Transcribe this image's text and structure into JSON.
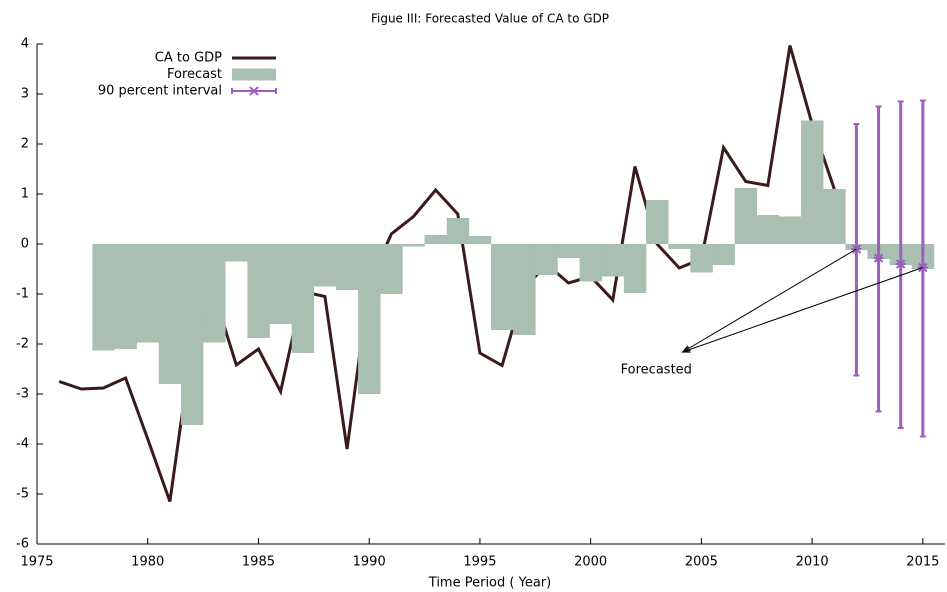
{
  "chart_data": {
    "type": "line",
    "title": "Figue III: Forecasted Value of CA to GDP",
    "x_label": "Time Period ( Year)",
    "annotation": "Forecasted",
    "xlim": [
      1975,
      2016
    ],
    "ylim": [
      -6,
      4
    ],
    "xticks": [
      1975,
      1980,
      1985,
      1990,
      1995,
      2000,
      2005,
      2010,
      2015
    ],
    "yticks": [
      -6,
      -5,
      -4,
      -3,
      -2,
      -1,
      0,
      1,
      2,
      3,
      4
    ],
    "legend": "top-left",
    "series": [
      {
        "name": "CA to GDP",
        "type": "line",
        "color": "#3b1a1c",
        "x": [
          1976,
          1977,
          1978,
          1979,
          1980,
          1981,
          1982,
          1983,
          1984,
          1985,
          1986,
          1987,
          1988,
          1989,
          1990,
          1991,
          1992,
          1993,
          1994,
          1995,
          1996,
          1997,
          1998,
          1999,
          2000,
          2001,
          2002,
          2003,
          2004,
          2005,
          2006,
          2007,
          2008,
          2009,
          2010,
          2011
        ],
        "values": [
          -2.75,
          -2.9,
          -2.88,
          -2.68,
          -3.9,
          -5.15,
          -2.0,
          -1.0,
          -2.42,
          -2.1,
          -2.95,
          -0.95,
          -1.05,
          -4.1,
          -0.8,
          0.2,
          0.55,
          1.08,
          0.6,
          -2.18,
          -2.43,
          -0.9,
          -0.4,
          -0.78,
          -0.65,
          -1.12,
          1.55,
          0.0,
          -0.48,
          -0.3,
          1.93,
          1.25,
          1.17,
          3.97,
          2.4,
          1.1
        ]
      },
      {
        "name": "Forecast",
        "type": "bar",
        "color": "#a8bfb2",
        "x": [
          1978,
          1979,
          1980,
          1981,
          1982,
          1983,
          1984,
          1985,
          1986,
          1987,
          1988,
          1989,
          1990,
          1991,
          1992,
          1993,
          1994,
          1995,
          1996,
          1997,
          1998,
          1999,
          2000,
          2001,
          2002,
          2003,
          2004,
          2005,
          2006,
          2007,
          2008,
          2009,
          2010,
          2011,
          2012,
          2013,
          2014,
          2015
        ],
        "values": [
          -2.13,
          -2.1,
          -1.97,
          -2.8,
          -3.62,
          -1.97,
          -0.35,
          -1.88,
          -1.6,
          -2.18,
          -0.85,
          -0.92,
          -3.0,
          -1.0,
          -0.05,
          0.18,
          0.52,
          0.16,
          -1.72,
          -1.82,
          -0.62,
          -0.28,
          -0.75,
          -0.65,
          -0.98,
          0.88,
          -0.1,
          -0.57,
          -0.42,
          1.12,
          0.58,
          0.55,
          2.47,
          1.1,
          -0.12,
          -0.3,
          -0.42,
          -0.5
        ]
      },
      {
        "name": "90 percent interval",
        "type": "errorbar",
        "color": "#9b5fc0",
        "x": [
          2012,
          2013,
          2014,
          2015
        ],
        "values": [
          -0.1,
          -0.28,
          -0.4,
          -0.47
        ],
        "lower": [
          -2.63,
          -3.35,
          -3.68,
          -3.85
        ],
        "upper": [
          2.4,
          2.75,
          2.85,
          2.87
        ]
      }
    ]
  }
}
